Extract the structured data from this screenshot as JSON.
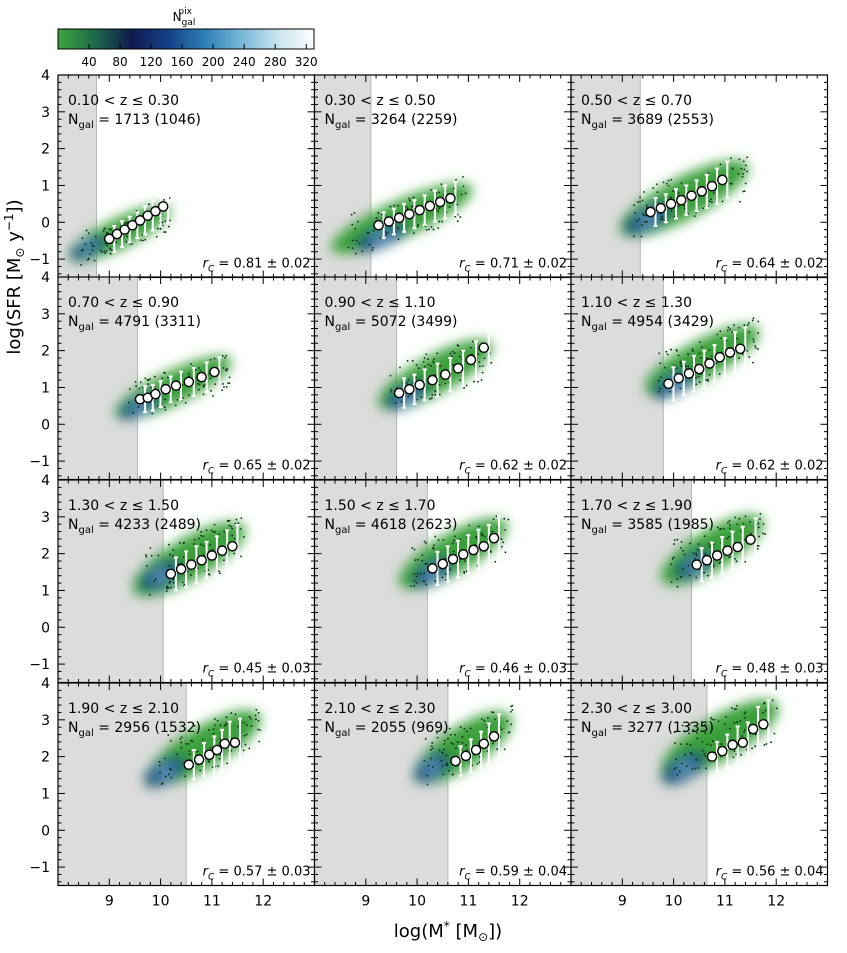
{
  "colorbar": {
    "label_main": "N",
    "label_sub": "gal",
    "label_sup": "pix",
    "ticks": [
      40,
      80,
      120,
      160,
      200,
      240,
      280,
      320
    ],
    "range": [
      0,
      330
    ],
    "stops": [
      "#3fa33f",
      "#1e6a4a",
      "#0e1a4e",
      "#143f86",
      "#2e7eb6",
      "#77b6d6",
      "#c8e3f0",
      "#ffffff"
    ]
  },
  "axes": {
    "xlabel_main": "log(M",
    "xlabel_star": "*",
    "xlabel_unit": " [M",
    "xlabel_sun": "⊙",
    "xlabel_close": "])",
    "ylabel_main": "log(SFR [M",
    "ylabel_sun": "⊙",
    "ylabel_y": " y",
    "ylabel_exp": "−1",
    "ylabel_close": "])",
    "xlim": [
      8.0,
      13.0
    ],
    "ylim": [
      -1.5,
      4.0
    ],
    "xticks": [
      "9",
      "10",
      "11",
      "12"
    ],
    "yticks": [
      "−1",
      "0",
      "1",
      "2",
      "3",
      "4"
    ]
  },
  "labels": {
    "lt": "<",
    "z": "z",
    "le": "≤",
    "N": "N",
    "gal": "gal",
    "eq": "=",
    "rc_r": "r",
    "rc_c": "C",
    "rc_eq": "=",
    "rc_pm": "±"
  },
  "colors": {
    "shade": "#dcdcdc",
    "shade_line": "#b5b5b5",
    "green": "#3aa03a",
    "dark_dots": "#0b2a12"
  },
  "chart_data": [
    {
      "type": "scatter",
      "zlo": "0.10",
      "zhi": "0.30",
      "ngal": "1713",
      "nsel": "(1046)",
      "rc": "0.81",
      "err": "0.02",
      "mlim": 8.75,
      "points": [
        [
          9.0,
          -0.45
        ],
        [
          9.15,
          -0.32
        ],
        [
          9.3,
          -0.2
        ],
        [
          9.45,
          -0.08
        ],
        [
          9.6,
          0.05
        ],
        [
          9.75,
          0.18
        ],
        [
          9.9,
          0.3
        ],
        [
          10.05,
          0.43
        ]
      ],
      "errs": [
        0.35,
        0.35,
        0.35,
        0.35,
        0.38,
        0.4,
        0.42,
        0.45
      ],
      "cloud": {
        "x": [
          8.1,
          10.3
        ],
        "y": [
          -1.2,
          0.6
        ],
        "slope": 0.55,
        "core": [
          8.6,
          -0.7
        ]
      }
    },
    {
      "type": "scatter",
      "zlo": "0.30",
      "zhi": "0.50",
      "ngal": "3264",
      "nsel": "(2259)",
      "rc": "0.71",
      "err": "0.02",
      "mlim": 9.1,
      "points": [
        [
          9.25,
          -0.08
        ],
        [
          9.45,
          0.02
        ],
        [
          9.65,
          0.12
        ],
        [
          9.85,
          0.22
        ],
        [
          10.05,
          0.33
        ],
        [
          10.25,
          0.44
        ],
        [
          10.45,
          0.55
        ],
        [
          10.65,
          0.65
        ]
      ],
      "errs": [
        0.35,
        0.35,
        0.38,
        0.38,
        0.4,
        0.42,
        0.45,
        0.45
      ],
      "cloud": {
        "x": [
          8.2,
          11.2
        ],
        "y": [
          -1.0,
          1.2
        ],
        "slope": 0.45,
        "core": [
          9.3,
          -0.4
        ]
      }
    },
    {
      "type": "scatter",
      "zlo": "0.50",
      "zhi": "0.70",
      "ngal": "3689",
      "nsel": "(2553)",
      "rc": "0.64",
      "err": "0.02",
      "mlim": 9.35,
      "points": [
        [
          9.55,
          0.28
        ],
        [
          9.75,
          0.38
        ],
        [
          9.95,
          0.5
        ],
        [
          10.15,
          0.6
        ],
        [
          10.35,
          0.72
        ],
        [
          10.55,
          0.84
        ],
        [
          10.75,
          0.98
        ],
        [
          10.95,
          1.15
        ]
      ],
      "errs": [
        0.38,
        0.38,
        0.4,
        0.4,
        0.42,
        0.45,
        0.48,
        0.5
      ],
      "cloud": {
        "x": [
          8.8,
          11.6
        ],
        "y": [
          -0.6,
          1.9
        ],
        "slope": 0.5,
        "core": [
          9.5,
          0.1
        ]
      }
    },
    {
      "type": "scatter",
      "zlo": "0.70",
      "zhi": "0.90",
      "ngal": "4791",
      "nsel": "(3311)",
      "rc": "0.65",
      "err": "0.02",
      "mlim": 9.55,
      "points": [
        [
          9.6,
          0.68
        ],
        [
          9.75,
          0.72
        ],
        [
          9.9,
          0.82
        ],
        [
          10.1,
          0.95
        ],
        [
          10.3,
          1.05
        ],
        [
          10.55,
          1.15
        ],
        [
          10.8,
          1.28
        ],
        [
          11.05,
          1.42
        ]
      ],
      "errs": [
        0.35,
        0.35,
        0.35,
        0.35,
        0.38,
        0.38,
        0.4,
        0.4
      ],
      "cloud": {
        "x": [
          9.0,
          11.5
        ],
        "y": [
          0.0,
          2.0
        ],
        "slope": 0.4,
        "core": [
          9.6,
          0.5
        ]
      }
    },
    {
      "type": "scatter",
      "zlo": "0.90",
      "zhi": "1.10",
      "ngal": "5072",
      "nsel": "(3499)",
      "rc": "0.62",
      "err": "0.02",
      "mlim": 9.6,
      "points": [
        [
          9.65,
          0.85
        ],
        [
          9.85,
          0.95
        ],
        [
          10.05,
          1.07
        ],
        [
          10.3,
          1.2
        ],
        [
          10.55,
          1.35
        ],
        [
          10.8,
          1.52
        ],
        [
          11.05,
          1.75
        ],
        [
          11.3,
          2.08
        ]
      ],
      "errs": [
        0.4,
        0.4,
        0.42,
        0.45,
        0.45,
        0.48,
        0.5,
        0.55
      ],
      "cloud": {
        "x": [
          9.1,
          11.6
        ],
        "y": [
          0.2,
          2.5
        ],
        "slope": 0.45,
        "core": [
          9.8,
          0.8
        ]
      }
    },
    {
      "type": "scatter",
      "zlo": "1.10",
      "zhi": "1.30",
      "ngal": "4954",
      "nsel": "(3429)",
      "rc": "0.62",
      "err": "0.02",
      "mlim": 9.8,
      "points": [
        [
          9.9,
          1.1
        ],
        [
          10.1,
          1.25
        ],
        [
          10.3,
          1.38
        ],
        [
          10.5,
          1.5
        ],
        [
          10.7,
          1.65
        ],
        [
          10.9,
          1.82
        ],
        [
          11.1,
          1.95
        ],
        [
          11.3,
          2.05
        ]
      ],
      "errs": [
        0.45,
        0.45,
        0.48,
        0.5,
        0.5,
        0.52,
        0.55,
        0.58
      ],
      "cloud": {
        "x": [
          9.3,
          11.8
        ],
        "y": [
          0.6,
          2.9
        ],
        "slope": 0.5,
        "core": [
          10.0,
          1.1
        ]
      }
    },
    {
      "type": "scatter",
      "zlo": "1.30",
      "zhi": "1.50",
      "ngal": "4233",
      "nsel": "(2489)",
      "rc": "0.45",
      "err": "0.03",
      "mlim": 10.05,
      "points": [
        [
          10.2,
          1.45
        ],
        [
          10.4,
          1.58
        ],
        [
          10.6,
          1.7
        ],
        [
          10.8,
          1.82
        ],
        [
          11.0,
          1.95
        ],
        [
          11.2,
          2.08
        ],
        [
          11.4,
          2.2
        ]
      ],
      "errs": [
        0.45,
        0.48,
        0.5,
        0.5,
        0.52,
        0.55,
        0.58
      ],
      "cloud": {
        "x": [
          9.3,
          11.8
        ],
        "y": [
          0.6,
          3.1
        ],
        "slope": 0.5,
        "core": [
          10.0,
          1.4
        ]
      }
    },
    {
      "type": "scatter",
      "zlo": "1.50",
      "zhi": "1.70",
      "ngal": "4618",
      "nsel": "(2623)",
      "rc": "0.46",
      "err": "0.03",
      "mlim": 10.2,
      "points": [
        [
          10.3,
          1.6
        ],
        [
          10.5,
          1.72
        ],
        [
          10.7,
          1.85
        ],
        [
          10.9,
          1.98
        ],
        [
          11.1,
          2.1
        ],
        [
          11.3,
          2.2
        ],
        [
          11.5,
          2.42
        ]
      ],
      "errs": [
        0.45,
        0.48,
        0.5,
        0.52,
        0.55,
        0.58,
        0.6
      ],
      "cloud": {
        "x": [
          9.5,
          11.9
        ],
        "y": [
          0.8,
          3.2
        ],
        "slope": 0.5,
        "core": [
          10.3,
          1.5
        ]
      }
    },
    {
      "type": "scatter",
      "zlo": "1.70",
      "zhi": "1.90",
      "ngal": "3585",
      "nsel": "(1985)",
      "rc": "0.48",
      "err": "0.03",
      "mlim": 10.35,
      "points": [
        [
          10.45,
          1.7
        ],
        [
          10.65,
          1.82
        ],
        [
          10.85,
          1.95
        ],
        [
          11.05,
          2.08
        ],
        [
          11.25,
          2.18
        ],
        [
          11.5,
          2.38
        ]
      ],
      "errs": [
        0.45,
        0.48,
        0.5,
        0.52,
        0.55,
        0.58
      ],
      "cloud": {
        "x": [
          9.6,
          11.9
        ],
        "y": [
          0.9,
          3.3
        ],
        "slope": 0.5,
        "core": [
          10.4,
          1.7
        ]
      }
    },
    {
      "type": "scatter",
      "zlo": "1.90",
      "zhi": "2.10",
      "ngal": "2956",
      "nsel": "(1532)",
      "rc": "0.57",
      "err": "0.03",
      "mlim": 10.5,
      "points": [
        [
          10.55,
          1.78
        ],
        [
          10.75,
          1.92
        ],
        [
          10.95,
          2.05
        ],
        [
          11.1,
          2.18
        ],
        [
          11.25,
          2.35
        ],
        [
          11.45,
          2.38
        ]
      ],
      "errs": [
        0.4,
        0.45,
        0.5,
        0.55,
        0.6,
        0.65
      ],
      "cloud": {
        "x": [
          9.6,
          12.1
        ],
        "y": [
          1.0,
          3.5
        ],
        "slope": 0.5,
        "core": [
          10.1,
          1.6
        ]
      }
    },
    {
      "type": "scatter",
      "zlo": "2.10",
      "zhi": "2.30",
      "ngal": "2055",
      "nsel": "(969)",
      "rc": "0.59",
      "err": "0.04",
      "mlim": 10.6,
      "points": [
        [
          10.75,
          1.88
        ],
        [
          10.95,
          2.02
        ],
        [
          11.15,
          2.18
        ],
        [
          11.3,
          2.35
        ],
        [
          11.5,
          2.55
        ]
      ],
      "errs": [
        0.4,
        0.45,
        0.5,
        0.55,
        0.6
      ],
      "cloud": {
        "x": [
          9.8,
          12.0
        ],
        "y": [
          1.0,
          3.5
        ],
        "slope": 0.5,
        "core": [
          10.3,
          1.7
        ]
      }
    },
    {
      "type": "scatter",
      "zlo": "2.30",
      "zhi": "3.00",
      "ngal": "3277",
      "nsel": "(1335)",
      "rc": "0.56",
      "err": "0.04",
      "mlim": 10.65,
      "points": [
        [
          10.75,
          2.0
        ],
        [
          10.95,
          2.15
        ],
        [
          11.15,
          2.32
        ],
        [
          11.35,
          2.38
        ],
        [
          11.55,
          2.75
        ],
        [
          11.75,
          2.88
        ]
      ],
      "errs": [
        0.4,
        0.45,
        0.5,
        0.55,
        0.6,
        0.65
      ],
      "cloud": {
        "x": [
          9.6,
          12.2
        ],
        "y": [
          1.2,
          3.8
        ],
        "slope": 0.5,
        "core": [
          10.2,
          1.7
        ]
      }
    }
  ]
}
